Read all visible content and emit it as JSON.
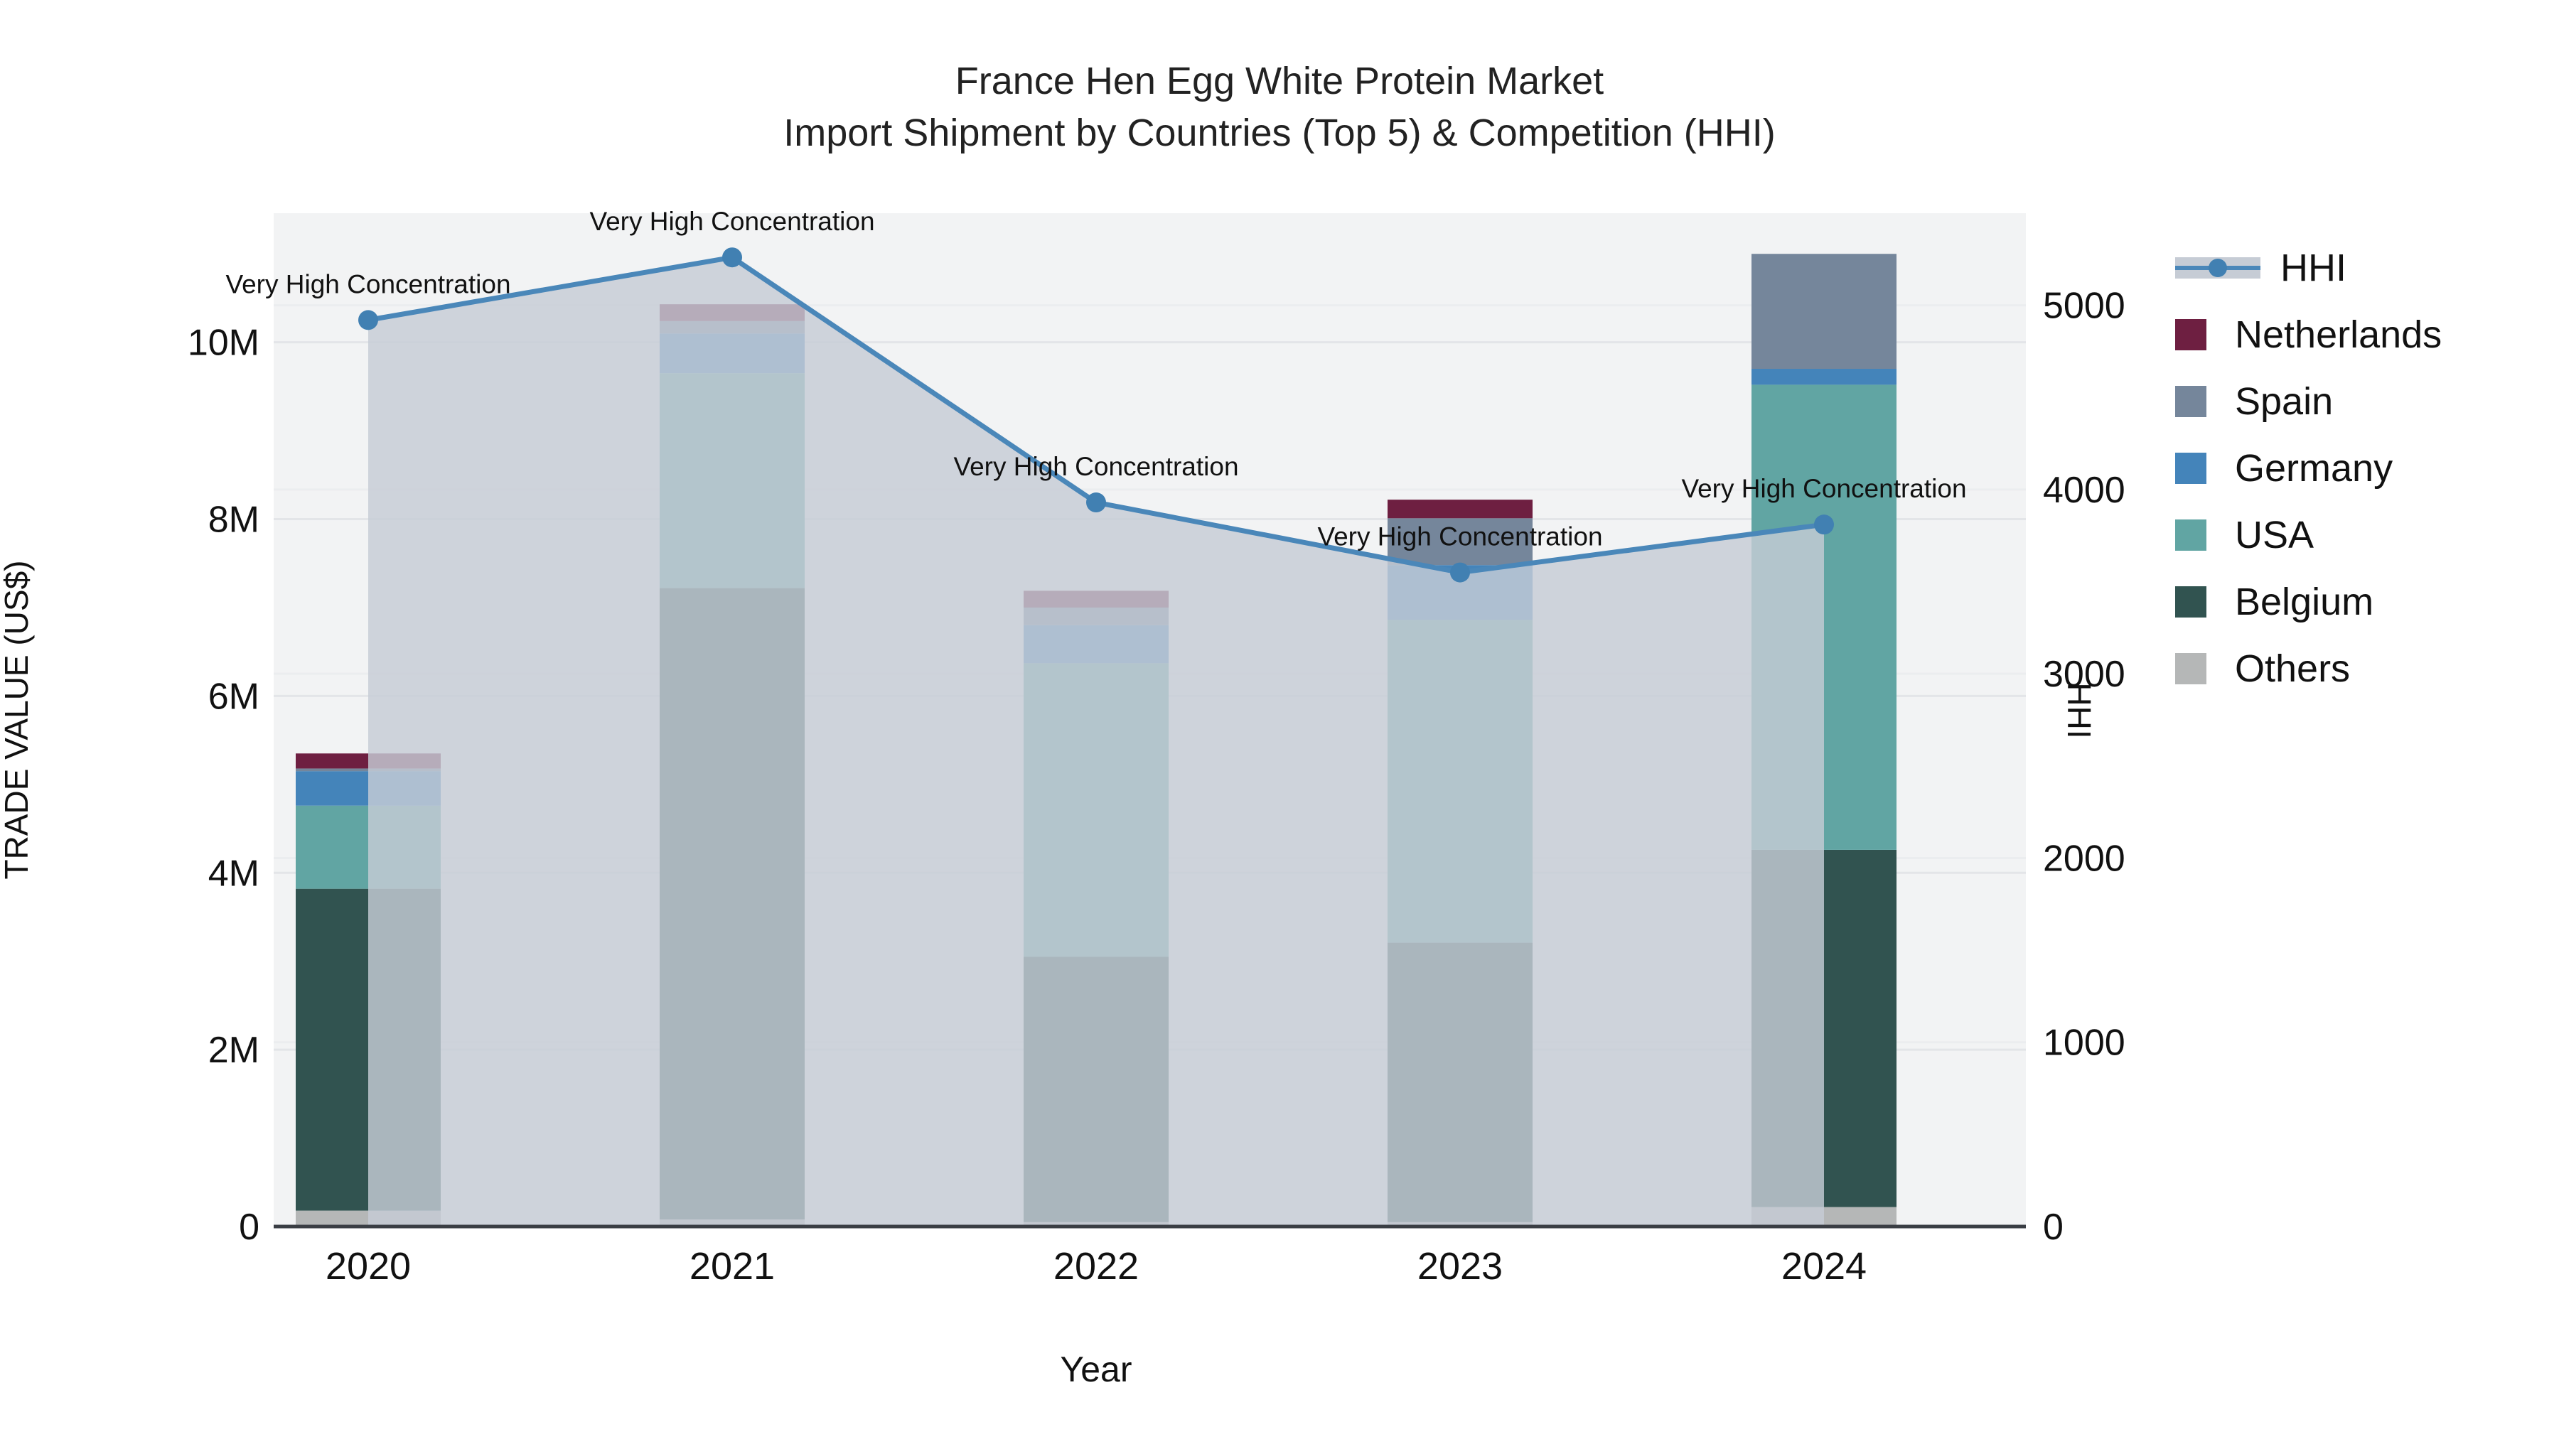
{
  "title": {
    "line1": "France Hen Egg White Protein Market",
    "line2": "Import Shipment by Countries (Top 5) & Competition (HHI)"
  },
  "chart_data": {
    "type": "bar",
    "subtype": "stacked-bars-with-line-area",
    "categories": [
      "2020",
      "2021",
      "2022",
      "2023",
      "2024"
    ],
    "unit": "US$M",
    "series": [
      {
        "name": "Others",
        "color": "#b5b7b7",
        "values": [
          0.18,
          0.08,
          0.05,
          0.05,
          0.22
        ]
      },
      {
        "name": "Belgium",
        "color": "#315350",
        "values": [
          3.64,
          7.14,
          3.0,
          3.16,
          4.04
        ]
      },
      {
        "name": "USA",
        "color": "#61a5a3",
        "values": [
          0.94,
          2.43,
          3.32,
          3.65,
          5.26
        ]
      },
      {
        "name": "Germany",
        "color": "#4484ba",
        "values": [
          0.39,
          0.45,
          0.43,
          0.62,
          0.18
        ]
      },
      {
        "name": "Spain",
        "color": "#75869b",
        "values": [
          0.03,
          0.14,
          0.2,
          0.53,
          1.3
        ]
      },
      {
        "name": "Netherlands",
        "color": "#6e1f41",
        "values": [
          0.17,
          0.19,
          0.19,
          0.21,
          0.0
        ]
      }
    ],
    "bar_totals": [
      5.35,
      10.43,
      7.19,
      8.22,
      11.0
    ],
    "line_series": {
      "name": "HHI",
      "color": "#4a87b9",
      "marker_color": "#4180b2",
      "area_color": "#c6ccd5",
      "values": [
        4920,
        5260,
        3930,
        3550,
        3810
      ]
    },
    "annotations": [
      "Very High Concentration",
      "Very High Concentration",
      "Very High Concentration",
      "Very High Concentration",
      "Very High Concentration"
    ],
    "xlabel": "Year",
    "ylabel": "TRADE VALUE (US$)",
    "y2label": "HHI",
    "yticks": [
      {
        "v": 0,
        "label": "0"
      },
      {
        "v": 2,
        "label": "2M"
      },
      {
        "v": 4,
        "label": "4M"
      },
      {
        "v": 6,
        "label": "6M"
      },
      {
        "v": 8,
        "label": "8M"
      },
      {
        "v": 10,
        "label": "10M"
      }
    ],
    "y2ticks": [
      {
        "v": 0,
        "label": "0"
      },
      {
        "v": 1000,
        "label": "1000"
      },
      {
        "v": 2000,
        "label": "2000"
      },
      {
        "v": 3000,
        "label": "3000"
      },
      {
        "v": 4000,
        "label": "4000"
      },
      {
        "v": 5000,
        "label": "5000"
      }
    ],
    "ylim": [
      0,
      11.46
    ],
    "y2lim": [
      0,
      5500
    ],
    "grid": true,
    "legend_position": "right",
    "legend": [
      "HHI",
      "Netherlands",
      "Spain",
      "Germany",
      "USA",
      "Belgium",
      "Others"
    ],
    "plot_bg": "#f2f3f4",
    "gridline_color_left": "#e3e5e8",
    "gridline_color_right": "#ebedef",
    "axisline_color": "#3a3e44",
    "text_color": "#111111"
  }
}
